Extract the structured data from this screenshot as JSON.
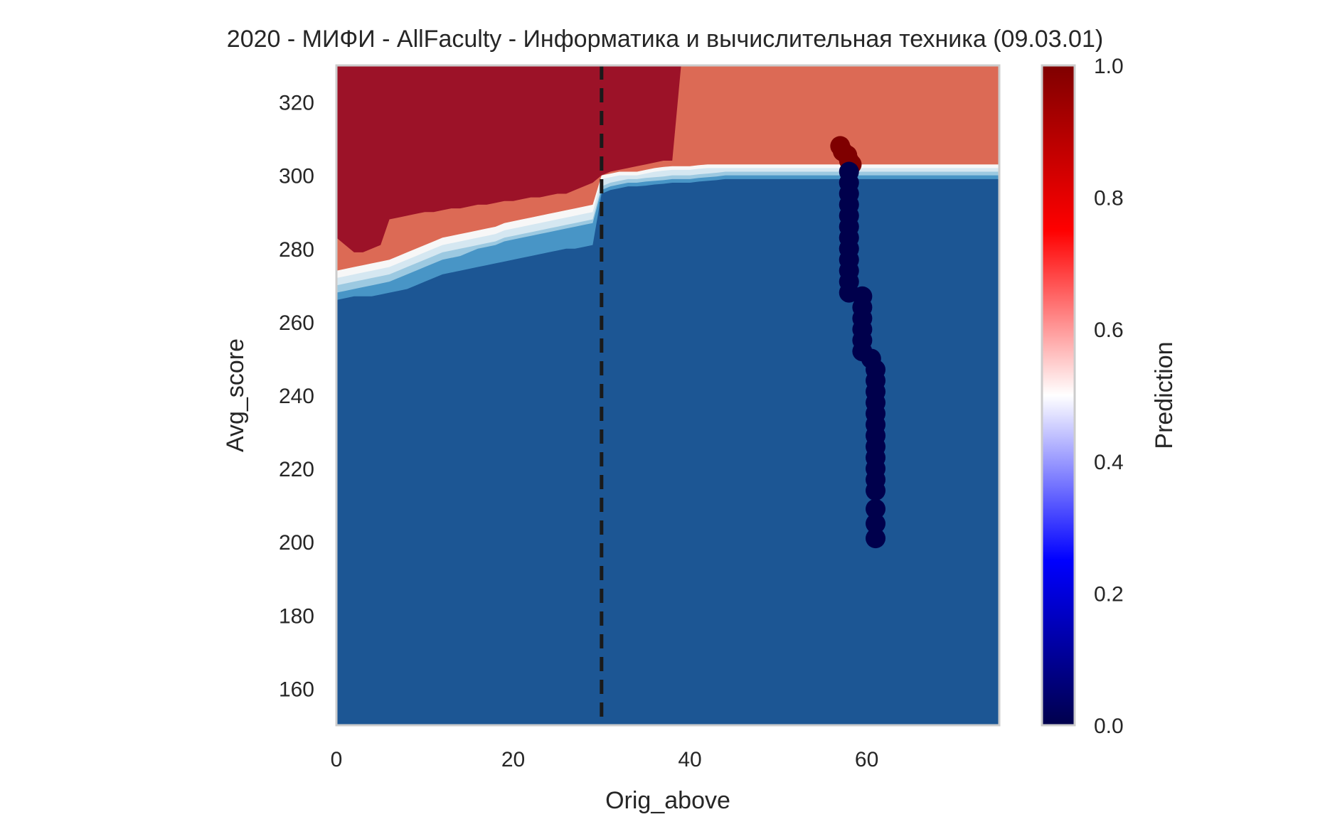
{
  "chart_data": {
    "type": "heatmap",
    "title": "2020 - МИФИ - AllFaculty - Информатика и вычислительная техника (09.03.01)",
    "xlabel": "Orig_above",
    "ylabel": "Avg_score",
    "xlim": [
      0,
      75
    ],
    "ylim": [
      150,
      330
    ],
    "x_ticks": [
      "0",
      "20",
      "40",
      "60"
    ],
    "x_tick_values": [
      0,
      20,
      40,
      60
    ],
    "y_ticks": [
      "160",
      "180",
      "200",
      "220",
      "240",
      "260",
      "280",
      "300",
      "320"
    ],
    "y_tick_values": [
      160,
      180,
      200,
      220,
      240,
      260,
      280,
      300,
      320
    ],
    "grid": false,
    "colorbar": {
      "label": "Prediction",
      "ticks": [
        "0.0",
        "0.2",
        "0.4",
        "0.6",
        "0.8",
        "1.0"
      ],
      "tick_values": [
        0,
        0.2,
        0.4,
        0.6,
        0.8,
        1.0
      ],
      "range": [
        0,
        1
      ],
      "colormap": "seismic"
    },
    "threshold_line": {
      "x": 30,
      "style": "dashed",
      "color": "#1a1a1a"
    },
    "contour_levels": [
      {
        "prediction": 0.1,
        "color": "#1c5694"
      },
      {
        "prediction": 0.2,
        "color": "#4895c6"
      },
      {
        "prediction": 0.3,
        "color": "#9cc9e1"
      },
      {
        "prediction": 0.4,
        "color": "#d5e7f1"
      },
      {
        "prediction": 0.5,
        "color": "#f7f7f7"
      },
      {
        "prediction": 0.6,
        "color": "#fbcfb7"
      },
      {
        "prediction": 0.7,
        "color": "#f4a688"
      },
      {
        "prediction": 0.8,
        "color": "#dc6a55"
      },
      {
        "prediction": 0.9,
        "color": "#9c1228"
      }
    ],
    "boundaries": {
      "x": [
        0,
        1,
        2,
        3,
        4,
        5,
        6,
        7,
        8,
        9,
        10,
        11,
        12,
        13,
        14,
        15,
        16,
        17,
        18,
        19,
        20,
        21,
        22,
        23,
        24,
        25,
        26,
        27,
        28,
        29,
        30,
        31,
        32,
        33,
        34,
        35,
        36,
        37,
        38,
        39,
        40,
        41,
        42,
        43,
        44,
        45,
        46,
        50,
        55,
        60,
        65,
        70,
        75
      ],
      "b_light_blue": [
        266,
        266.5,
        267,
        267,
        267,
        267.5,
        268,
        268.5,
        269,
        270,
        271,
        272,
        273,
        273.5,
        274,
        274.5,
        275,
        275.5,
        276,
        276.5,
        277,
        277.5,
        278,
        278.5,
        279,
        279.5,
        280,
        280,
        280.5,
        281,
        295,
        296,
        296.5,
        297,
        297,
        297.2,
        297.5,
        297.7,
        298,
        298,
        298,
        298.3,
        298.5,
        298.7,
        299,
        299,
        299,
        299,
        299,
        299,
        299,
        299,
        299
      ],
      "b_lighter_blue": [
        268,
        268.5,
        269,
        269.5,
        270,
        270.5,
        271,
        272,
        273,
        274,
        275,
        276,
        277,
        277.5,
        278,
        279,
        280,
        280.5,
        281,
        282,
        282.5,
        283,
        283.5,
        284,
        284.5,
        285,
        285.5,
        286,
        286.5,
        287,
        296,
        297,
        297.5,
        298,
        298,
        298.3,
        298.5,
        298.7,
        299,
        299,
        299,
        299.3,
        299.5,
        299.7,
        300,
        300,
        300,
        300,
        300,
        300,
        300,
        300,
        300
      ],
      "b_white": [
        270,
        270.5,
        271,
        271.5,
        272,
        272.5,
        273,
        274,
        275,
        276,
        277,
        278,
        279,
        279.5,
        280,
        280.5,
        281,
        281.5,
        282,
        283,
        283.5,
        284,
        284.5,
        285,
        285.5,
        286,
        286.5,
        287,
        287.5,
        288,
        297,
        298,
        298.5,
        299,
        299,
        299.3,
        299.5,
        299.7,
        300,
        300,
        300,
        300.3,
        300.5,
        300.7,
        301,
        301,
        301,
        301,
        301,
        301,
        301,
        301,
        301
      ],
      "b_light_red": [
        272,
        272.5,
        273,
        273.5,
        274,
        274.5,
        275,
        276,
        277,
        278,
        279,
        280,
        281,
        281.5,
        282,
        282.5,
        283,
        283.5,
        284,
        285,
        285.5,
        286,
        286.5,
        287,
        287.5,
        288,
        288.5,
        289,
        289.5,
        290,
        299,
        299.5,
        300,
        300,
        300,
        300.5,
        301,
        301.3,
        301.5,
        301.5,
        301.5,
        301.8,
        302,
        302,
        302,
        302,
        302,
        302,
        302,
        302,
        302,
        302,
        302
      ],
      "b_peach": [
        274,
        274.5,
        275,
        275.5,
        276,
        276.5,
        277,
        278,
        279,
        280,
        281,
        282,
        283,
        283.5,
        284,
        284.5,
        285,
        285.5,
        286,
        287,
        287.5,
        288,
        288.5,
        289,
        289.5,
        290,
        290.5,
        291,
        291.5,
        292,
        300,
        300.5,
        301,
        301,
        301,
        301.5,
        302,
        302.3,
        302.5,
        302.5,
        302.5,
        302.8,
        303,
        303,
        303,
        303,
        303,
        303,
        303,
        303,
        303,
        303,
        303
      ],
      "b_dark_red": [
        283,
        281,
        279,
        279,
        280,
        281,
        288,
        288.5,
        289,
        289.5,
        290,
        290,
        290.5,
        291,
        291,
        291.5,
        292,
        292,
        292.5,
        293,
        293,
        293.5,
        294,
        294,
        294.5,
        295,
        295,
        296,
        297,
        298,
        300,
        301,
        301.5,
        302,
        302.5,
        303,
        303.5,
        304,
        304,
        330,
        330,
        330,
        330,
        330,
        330,
        330,
        330,
        330,
        330,
        330,
        330,
        330,
        330
      ]
    },
    "series": [
      {
        "name": "",
        "color_by": "prediction",
        "points": [
          [
            57,
            308,
            1
          ],
          [
            57.3,
            306.5,
            1
          ],
          [
            57.8,
            305.5,
            1
          ],
          [
            58,
            304,
            1
          ],
          [
            58.3,
            303,
            1
          ],
          [
            58,
            301,
            0
          ],
          [
            58,
            298,
            0
          ],
          [
            58,
            295,
            0
          ],
          [
            58,
            292,
            0
          ],
          [
            58,
            289,
            0
          ],
          [
            58,
            286,
            0
          ],
          [
            58,
            283,
            0
          ],
          [
            58,
            280,
            0
          ],
          [
            58,
            277,
            0
          ],
          [
            58,
            274,
            0
          ],
          [
            58,
            271,
            0
          ],
          [
            58,
            268,
            0
          ],
          [
            59.5,
            267,
            0
          ],
          [
            59.5,
            264,
            0
          ],
          [
            59.5,
            261,
            0
          ],
          [
            59.5,
            258,
            0
          ],
          [
            59.5,
            255,
            0
          ],
          [
            59.5,
            252,
            0
          ],
          [
            60.5,
            250,
            0
          ],
          [
            61,
            247,
            0
          ],
          [
            61,
            244,
            0
          ],
          [
            61,
            241,
            0
          ],
          [
            61,
            238,
            0
          ],
          [
            61,
            235,
            0
          ],
          [
            61,
            232,
            0
          ],
          [
            61,
            229,
            0
          ],
          [
            61,
            226,
            0
          ],
          [
            61,
            223,
            0
          ],
          [
            61,
            220,
            0
          ],
          [
            61,
            217,
            0
          ],
          [
            61,
            214,
            0
          ],
          [
            61,
            209,
            0
          ],
          [
            61,
            205,
            0
          ],
          [
            61,
            201,
            0
          ]
        ]
      }
    ]
  }
}
